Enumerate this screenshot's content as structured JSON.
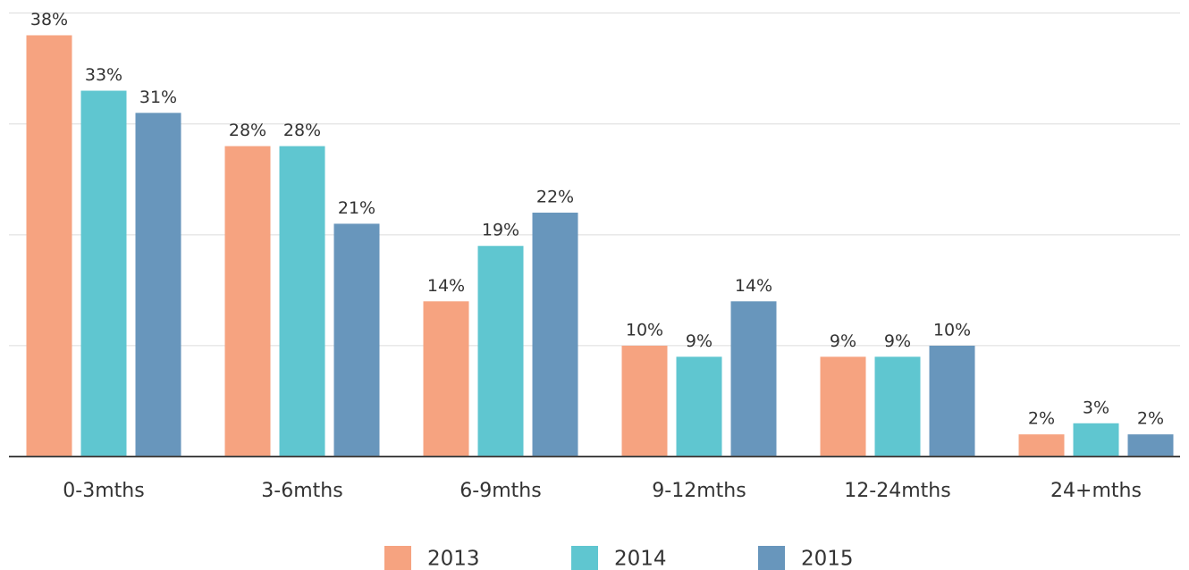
{
  "chart_data": {
    "type": "bar",
    "categories": [
      "0-3mths",
      "3-6mths",
      "6-9mths",
      "9-12mths",
      "12-24mths",
      "24+mths"
    ],
    "series": [
      {
        "name": "2013",
        "color": "#f6a380",
        "values": [
          38,
          28,
          14,
          10,
          9,
          2
        ],
        "value_labels": [
          "38%",
          "28%",
          "14%",
          "10%",
          "9%",
          "2%"
        ]
      },
      {
        "name": "2014",
        "color": "#5fc6d0",
        "values": [
          33,
          28,
          19,
          9,
          9,
          3
        ],
        "value_labels": [
          "33%",
          "28%",
          "19%",
          "9%",
          "9%",
          "3%"
        ]
      },
      {
        "name": "2015",
        "color": "#6896bc",
        "values": [
          31,
          21,
          22,
          14,
          10,
          2
        ],
        "value_labels": [
          "31%",
          "21%",
          "22%",
          "14%",
          "10%",
          "2%"
        ]
      }
    ],
    "ylim": [
      0,
      38.2
    ],
    "yticks": [
      0,
      10,
      20,
      30,
      40
    ],
    "grid": true,
    "legend": "bottom"
  }
}
